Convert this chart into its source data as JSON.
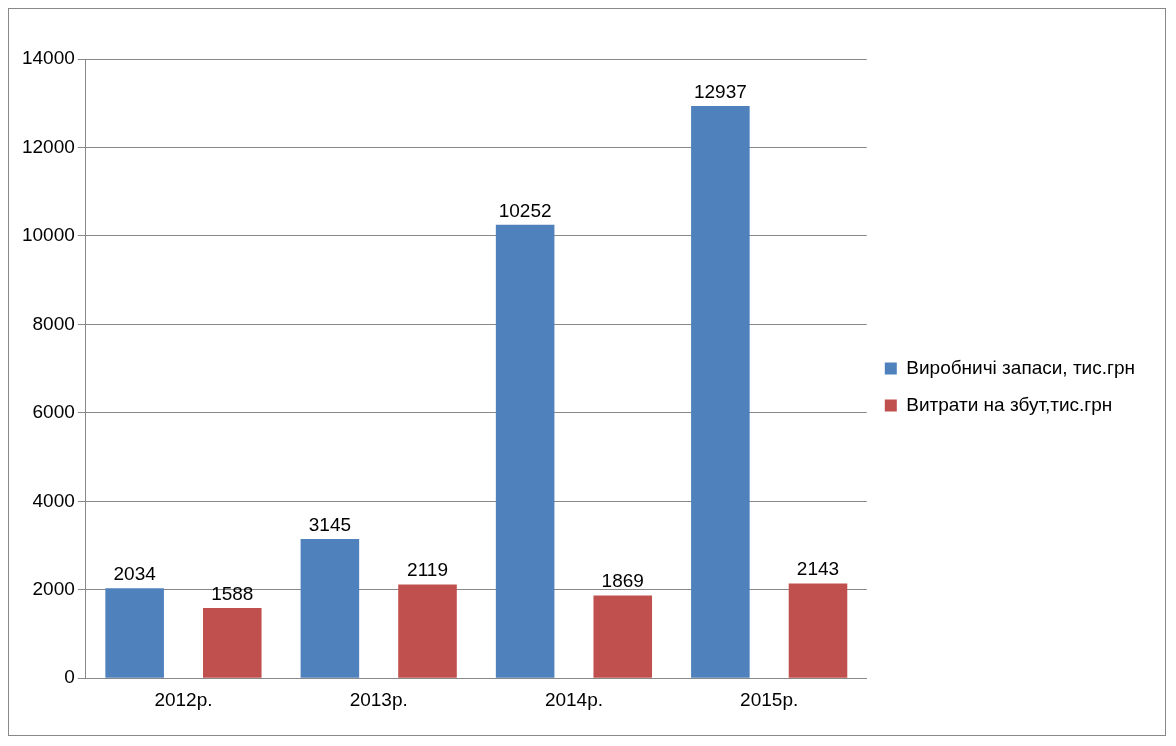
{
  "chart_data": {
    "type": "bar",
    "categories": [
      "2012р.",
      "2013р.",
      "2014р.",
      "2015р."
    ],
    "series": [
      {
        "name": "Виробничі запаси, тис.грн",
        "color": "#4f81bd",
        "values": [
          2034,
          3145,
          10252,
          12937
        ]
      },
      {
        "name": "Витрати на збут,тис.грн",
        "color": "#c0504d",
        "values": [
          1588,
          2119,
          1869,
          2143
        ]
      }
    ],
    "ylim": [
      0,
      14000
    ],
    "yticks": [
      0,
      2000,
      4000,
      6000,
      8000,
      10000,
      12000,
      14000
    ],
    "grid": "y",
    "legend": "right",
    "data_labels": true
  }
}
